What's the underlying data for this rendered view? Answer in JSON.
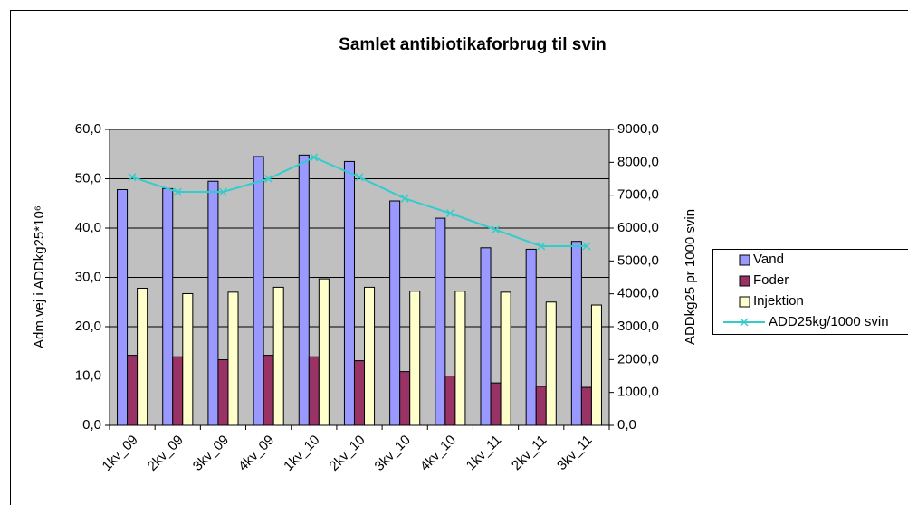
{
  "chart_data": {
    "type": "bar",
    "title": "Samlet antibiotikaforbrug til svin",
    "y_label": "Adm.vej i ADDkg25*10⁶",
    "y2_label": "ADDkg25 pr 1000 svin",
    "categories": [
      "1kv_09",
      "2kv_09",
      "3kv_09",
      "4kv_09",
      "1kv_10",
      "2kv_10",
      "3kv_10",
      "4kv_10",
      "1kv_11",
      "2kv_11",
      "3kv_11"
    ],
    "series": [
      {
        "name": "Vand",
        "color": "#9999ff",
        "type": "bar",
        "values": [
          47.8,
          48.0,
          49.5,
          54.5,
          54.8,
          53.5,
          45.5,
          42.0,
          36.0,
          35.7,
          37.3
        ]
      },
      {
        "name": "Foder",
        "color": "#993366",
        "type": "bar",
        "values": [
          14.2,
          13.9,
          13.3,
          14.2,
          13.9,
          13.1,
          10.9,
          10.0,
          8.6,
          7.9,
          7.7
        ]
      },
      {
        "name": "Injektion",
        "color": "#ffffcc",
        "type": "bar",
        "values": [
          27.8,
          26.7,
          27.0,
          28.0,
          29.7,
          28.0,
          27.2,
          27.2,
          27.0,
          25.0,
          24.4
        ]
      },
      {
        "name": "ADD25kg/1000 svin",
        "color": "#33cccc",
        "type": "line",
        "axis": "y2",
        "values": [
          7550,
          7100,
          7100,
          7500,
          8150,
          7550,
          6900,
          6450,
          5950,
          5450,
          5450
        ]
      }
    ],
    "ylim": [
      0,
      60
    ],
    "yticks": [
      {
        "value": 0,
        "label": "0,0"
      },
      {
        "value": 10,
        "label": "10,0"
      },
      {
        "value": 20,
        "label": "20,0"
      },
      {
        "value": 30,
        "label": "30,0"
      },
      {
        "value": 40,
        "label": "40,0"
      },
      {
        "value": 50,
        "label": "50,0"
      },
      {
        "value": 60,
        "label": "60,0"
      }
    ],
    "y2lim": [
      0,
      9000
    ],
    "y2ticks": [
      {
        "value": 0,
        "label": "0,0"
      },
      {
        "value": 1000,
        "label": "1000,0"
      },
      {
        "value": 2000,
        "label": "2000,0"
      },
      {
        "value": 3000,
        "label": "3000,0"
      },
      {
        "value": 4000,
        "label": "4000,0"
      },
      {
        "value": 5000,
        "label": "5000,0"
      },
      {
        "value": 6000,
        "label": "6000,0"
      },
      {
        "value": 7000,
        "label": "7000,0"
      },
      {
        "value": 8000,
        "label": "8000,0"
      },
      {
        "value": 9000,
        "label": "9000,0"
      }
    ],
    "grid": true,
    "legend": "right"
  }
}
